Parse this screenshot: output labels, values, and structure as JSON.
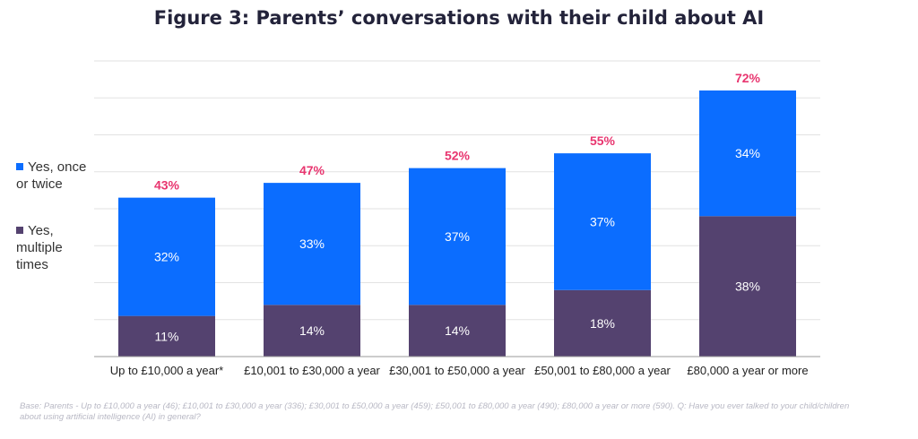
{
  "chart_data": {
    "type": "bar",
    "stacked": true,
    "title": "Figure 3: Parents’ conversations with their child about AI",
    "categories": [
      "Up to £10,000 a year*",
      "£10,001 to £30,000 a year",
      "£30,001 to £50,000 a year",
      "£50,001 to £80,000 a year",
      "£80,000 a year or more"
    ],
    "series": [
      {
        "name": "Yes, multiple times",
        "values": [
          11,
          14,
          14,
          18,
          38
        ],
        "labels": [
          "11%",
          "14%",
          "14%",
          "18%",
          "38%"
        ],
        "color": "#54426f"
      },
      {
        "name": "Yes, once or twice",
        "values": [
          32,
          33,
          37,
          37,
          34
        ],
        "labels": [
          "32%",
          "33%",
          "37%",
          "37%",
          "34%"
        ],
        "color": "#0b6dff"
      }
    ],
    "totals": [
      43,
      47,
      52,
      55,
      72
    ],
    "total_labels": [
      "43%",
      "47%",
      "52%",
      "55%",
      "72%"
    ],
    "total_color": "#e8356f",
    "ylim": [
      0,
      80
    ],
    "grid": true,
    "legend_position": "left",
    "legend": [
      {
        "lines": [
          "Yes, once",
          "or twice"
        ],
        "color": "#0b6dff"
      },
      {
        "lines": [
          "Yes,",
          "multiple",
          "times"
        ],
        "color": "#54426f"
      }
    ]
  },
  "footnote": "Base: Parents - Up to £10,000 a year (46); £10,001 to £30,000 a year (336); £30,001 to £50,000 a year (459); £50,001 to £80,000 a year (490); £80,000 a year or more (590). Q: Have you ever talked to your child/children about using artificial intelligence (AI) in general?"
}
